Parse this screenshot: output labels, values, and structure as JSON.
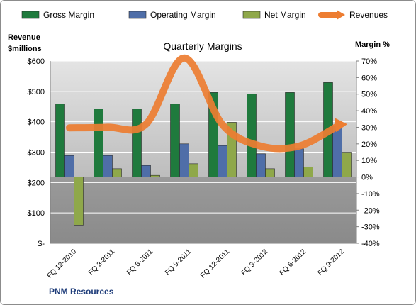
{
  "chart_data": {
    "type": "bar",
    "title": "Quarterly Margins",
    "left_axis_label_line1": "Revenue",
    "left_axis_label_line2": "$millions",
    "right_axis_label": "Margin %",
    "footer": "PNM Resources",
    "categories": [
      "FQ 12-2010",
      "FQ 3-2011",
      "FQ 6-2011",
      "FQ 9-2011",
      "FQ 12-2011",
      "FQ 3-2012",
      "FQ 6-2012",
      "FQ 9-2012"
    ],
    "left_axis": {
      "min": 0,
      "max": 600,
      "step": 100,
      "tick_labels": [
        "$-",
        "$100",
        "$200",
        "$300",
        "$400",
        "$500",
        "$600"
      ]
    },
    "right_axis": {
      "min": -40,
      "max": 70,
      "step": 10,
      "tick_labels": [
        "-40%",
        "-30%",
        "-20%",
        "-10%",
        "0%",
        "10%",
        "20%",
        "30%",
        "40%",
        "50%",
        "60%",
        "70%"
      ]
    },
    "series": [
      {
        "name": "Gross Margin",
        "kind": "bar",
        "axis": "right",
        "color": "#1f7a3d",
        "values": [
          44,
          41,
          41,
          44,
          51,
          50,
          51,
          57
        ]
      },
      {
        "name": "Operating Margin",
        "kind": "bar",
        "axis": "right",
        "color": "#4f6ea8",
        "values": [
          13,
          13,
          7,
          20,
          19,
          14,
          17,
          31
        ]
      },
      {
        "name": "Net Margin",
        "kind": "bar",
        "axis": "right",
        "color": "#8fa84a",
        "values": [
          -29,
          5,
          1,
          8,
          33,
          5,
          6,
          15
        ]
      },
      {
        "name": "Revenues",
        "kind": "line",
        "axis": "left",
        "color": "#ed7d31",
        "values": [
          380,
          382,
          392,
          610,
          390,
          320,
          320,
          385
        ]
      }
    ],
    "legend_position": "top",
    "grid": true
  }
}
